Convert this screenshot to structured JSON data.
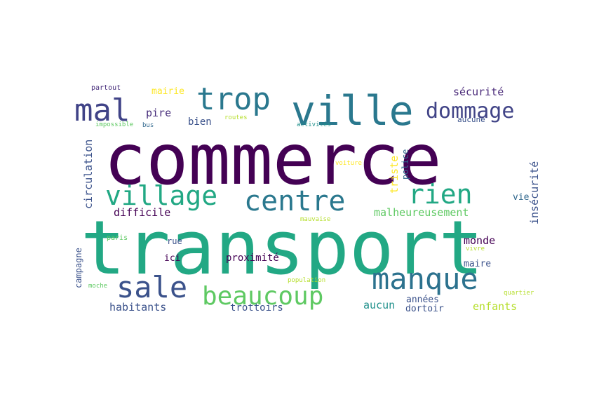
{
  "words": [
    {
      "text": "commerce",
      "color": "#440154"
    },
    {
      "text": "transport",
      "color": "#22a884"
    },
    {
      "text": "ville",
      "color": "#2a788e"
    },
    {
      "text": "mal",
      "color": "#404387"
    },
    {
      "text": "trop",
      "color": "#2a788e"
    },
    {
      "text": "dommage",
      "color": "#414487"
    },
    {
      "text": "village",
      "color": "#22a884"
    },
    {
      "text": "centre",
      "color": "#2a788e"
    },
    {
      "text": "rien",
      "color": "#22a884"
    },
    {
      "text": "sale",
      "color": "#3b528b"
    },
    {
      "text": "manque",
      "color": "#2c728e"
    },
    {
      "text": "beaucoup",
      "color": "#5ec962"
    },
    {
      "text": "sécurité",
      "color": "#482878"
    },
    {
      "text": "mairie",
      "color": "#fde725"
    },
    {
      "text": "pire",
      "color": "#472d7b"
    },
    {
      "text": "bien",
      "color": "#3b528b"
    },
    {
      "text": "partout",
      "color": "#472d7b"
    },
    {
      "text": "impossible",
      "color": "#5ec962"
    },
    {
      "text": "bus",
      "color": "#31688e"
    },
    {
      "text": "routes",
      "color": "#b5de2b"
    },
    {
      "text": "activités",
      "color": "#21918c"
    },
    {
      "text": "aucune",
      "color": "#3b528b"
    },
    {
      "text": "circulation",
      "color": "#3b528b"
    },
    {
      "text": "triste",
      "color": "#fde725"
    },
    {
      "text": "police",
      "color": "#31688e"
    },
    {
      "text": "voiture",
      "color": "#fde725"
    },
    {
      "text": "insécurité",
      "color": "#3b528b"
    },
    {
      "text": "vie",
      "color": "#31688e"
    },
    {
      "text": "difficile",
      "color": "#440154"
    },
    {
      "text": "malheureusement",
      "color": "#5ec962"
    },
    {
      "text": "mauvaise",
      "color": "#b5de2b"
    },
    {
      "text": "campagne",
      "color": "#3b528b"
    },
    {
      "text": "paris",
      "color": "#5ec962"
    },
    {
      "text": "rue",
      "color": "#3b528b"
    },
    {
      "text": "ici",
      "color": "#440154"
    },
    {
      "text": "monde",
      "color": "#440154"
    },
    {
      "text": "vivre",
      "color": "#b5de2b"
    },
    {
      "text": "maire",
      "color": "#3b528b"
    },
    {
      "text": "moche",
      "color": "#5ec962"
    },
    {
      "text": "proximité",
      "color": "#440154"
    },
    {
      "text": "population",
      "color": "#b5de2b"
    },
    {
      "text": "années",
      "color": "#3b528b"
    },
    {
      "text": "quartier",
      "color": "#b5de2b"
    },
    {
      "text": "aucun",
      "color": "#21918c"
    },
    {
      "text": "dortoir",
      "color": "#3b528b"
    },
    {
      "text": "habitants",
      "color": "#3b528b"
    },
    {
      "text": "trottoirs",
      "color": "#3b528b"
    },
    {
      "text": "enfants",
      "color": "#b5de2b"
    }
  ]
}
